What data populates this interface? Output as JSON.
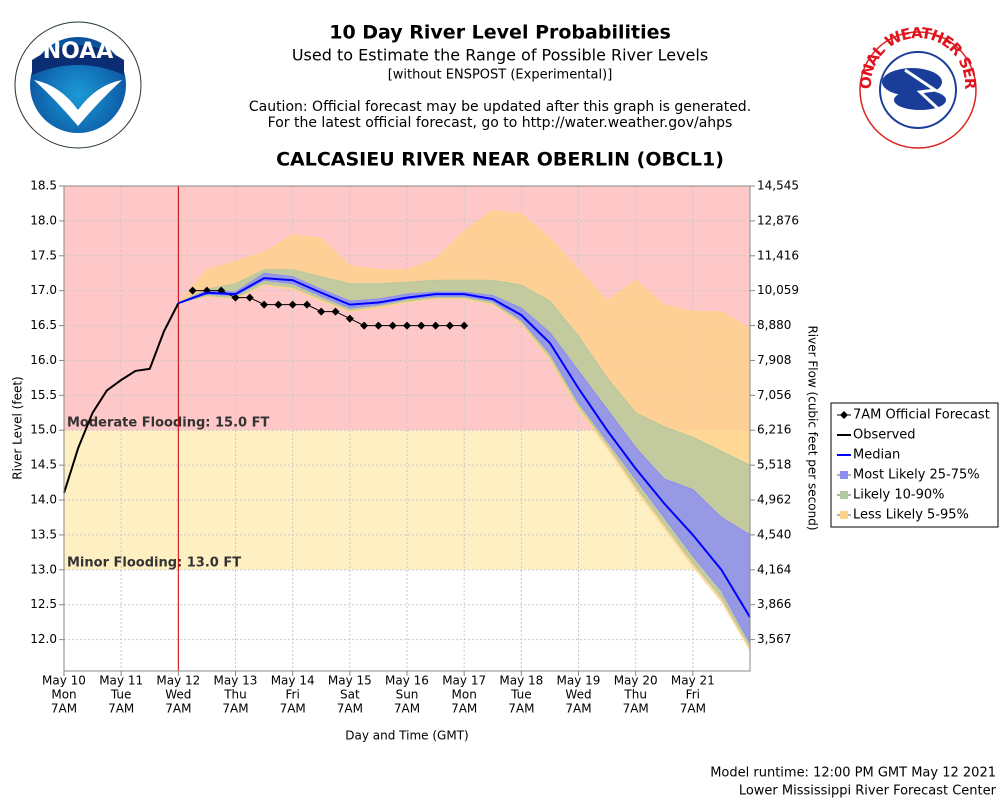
{
  "header": {
    "title": "10 Day River Level Probabilities",
    "subtitle": "Used to Estimate the Range of Possible River Levels",
    "note": "[without ENSPOST (Experimental)]",
    "caution": [
      "Caution: Official forecast may be updated after this graph is generated.",
      "For the latest official forecast, go to http://water.weather.gov/ahps"
    ]
  },
  "logos": {
    "left": "NOAA",
    "right": "NATIONAL WEATHER SERVICE"
  },
  "chart_data": {
    "type": "band-line",
    "title": "CALCASIEU RIVER NEAR OBERLIN (OBCL1)",
    "xlabel": "Day and Time (GMT)",
    "ylabel": "River Level (feet)",
    "y2label": "River Flow (cubic feet per second)",
    "xlim": [
      0,
      12
    ],
    "ylim": [
      11.55,
      18.5
    ],
    "grid": true,
    "legend": "right",
    "xticks": [
      {
        "value": 0,
        "label": [
          "May 10",
          "Mon",
          "7AM"
        ]
      },
      {
        "value": 1,
        "label": [
          "May 11",
          "Tue",
          "7AM"
        ]
      },
      {
        "value": 2,
        "label": [
          "May 12",
          "Wed",
          "7AM"
        ]
      },
      {
        "value": 3,
        "label": [
          "May 13",
          "Thu",
          "7AM"
        ]
      },
      {
        "value": 4,
        "label": [
          "May 14",
          "Fri",
          "7AM"
        ]
      },
      {
        "value": 5,
        "label": [
          "May 15",
          "Sat",
          "7AM"
        ]
      },
      {
        "value": 6,
        "label": [
          "May 16",
          "Sun",
          "7AM"
        ]
      },
      {
        "value": 7,
        "label": [
          "May 17",
          "Mon",
          "7AM"
        ]
      },
      {
        "value": 8,
        "label": [
          "May 18",
          "Tue",
          "7AM"
        ]
      },
      {
        "value": 9,
        "label": [
          "May 19",
          "Wed",
          "7AM"
        ]
      },
      {
        "value": 10,
        "label": [
          "May 20",
          "Thu",
          "7AM"
        ]
      },
      {
        "value": 11,
        "label": [
          "May 21",
          "Fri",
          "7AM"
        ]
      }
    ],
    "yticks": [
      18.5,
      {
        "value": 18,
        "label": "18.0"
      },
      17.5,
      {
        "value": 17,
        "label": "17.0"
      },
      16.5,
      {
        "value": 16,
        "label": "16.0"
      },
      15.5,
      {
        "value": 15,
        "label": "15.0"
      },
      14.5,
      {
        "value": 14,
        "label": "14.0"
      },
      13.5,
      {
        "value": 13,
        "label": "13.0"
      },
      12.5,
      {
        "value": 12,
        "label": "12.0"
      }
    ],
    "y2ticks": [
      {
        "value": 14545,
        "label": "14,545",
        "stage": 18.5
      },
      {
        "value": 12876,
        "label": "12,876",
        "stage": 18
      },
      {
        "value": 11416,
        "label": "11,416",
        "stage": 17.5
      },
      {
        "value": 10059,
        "label": "10,059",
        "stage": 17
      },
      {
        "value": 8880,
        "label": "8,880",
        "stage": 16.5
      },
      {
        "value": 7908,
        "label": "7,908",
        "stage": 16
      },
      {
        "value": 7056,
        "label": "7,056",
        "stage": 15.5
      },
      {
        "value": 6216,
        "label": "6,216",
        "stage": 15
      },
      {
        "value": 5518,
        "label": "5,518",
        "stage": 14.5
      },
      {
        "value": 4962,
        "label": "4,962",
        "stage": 14
      },
      {
        "value": 4540,
        "label": "4,540",
        "stage": 13.5
      },
      {
        "value": 4164,
        "label": "4,164",
        "stage": 13
      },
      {
        "value": 3866,
        "label": "3,866",
        "stage": 12.5
      },
      {
        "value": 3567,
        "label": "3,567",
        "stage": 12
      }
    ],
    "thresholds": [
      {
        "label": "Moderate Flooding: 15.0 FT",
        "value": 15,
        "color": "#ffc8c8"
      },
      {
        "label": "Minor Flooding: 13.0 FT",
        "value": 13,
        "color": "#fff0c4"
      }
    ],
    "now_x": 2,
    "now_color": "#cc0000",
    "series": [
      {
        "name": "7AM Official Forecast",
        "color": "#000000",
        "marker": "diamond",
        "x": [
          2.25,
          2.5,
          2.75,
          3,
          3.25,
          3.5,
          3.75,
          4,
          4.25,
          4.5,
          4.75,
          5,
          5.25,
          5.5,
          5.75,
          6,
          6.25,
          6.5,
          6.75,
          7
        ],
        "values": [
          17,
          17,
          17,
          16.9,
          16.9,
          16.8,
          16.8,
          16.8,
          16.8,
          16.7,
          16.7,
          16.6,
          16.5,
          16.5,
          16.5,
          16.5,
          16.5,
          16.5,
          16.5,
          16.5
        ]
      },
      {
        "name": "Observed",
        "color": "#000000",
        "x": [
          0,
          0.25,
          0.5,
          0.75,
          1,
          1.25,
          1.5,
          1.75,
          2
        ],
        "values": [
          14.1,
          14.75,
          15.25,
          15.57,
          15.72,
          15.85,
          15.88,
          16.42,
          16.82
        ]
      },
      {
        "name": "Median",
        "color": "#0000ff",
        "x": [
          2,
          2.5,
          3,
          3.5,
          4,
          4.5,
          5,
          5.5,
          6,
          6.5,
          7,
          7.5,
          8,
          8.5,
          9,
          9.5,
          10,
          10.5,
          11,
          11.5,
          12
        ],
        "values": [
          16.82,
          16.97,
          16.95,
          17.18,
          17.15,
          16.97,
          16.8,
          16.83,
          16.9,
          16.95,
          16.95,
          16.88,
          16.65,
          16.25,
          15.6,
          15,
          14.45,
          13.95,
          13.5,
          13,
          12.32
        ]
      }
    ],
    "band_x": [
      2,
      2.5,
      3,
      3.5,
      4,
      4.5,
      5,
      5.5,
      6,
      6.5,
      7,
      7.5,
      8,
      8.5,
      9,
      9.5,
      10,
      10.5,
      11,
      11.5,
      12
    ],
    "bands": [
      {
        "name": "Most Likely 25-75%",
        "color": "#8c8cf5",
        "lower": [
          16.82,
          16.95,
          16.93,
          17.15,
          17.1,
          16.92,
          16.75,
          16.8,
          16.88,
          16.92,
          16.92,
          16.85,
          16.58,
          16.1,
          15.4,
          14.85,
          14.3,
          13.75,
          13.2,
          12.7,
          11.95
        ],
        "upper": [
          16.82,
          17,
          16.98,
          17.25,
          17.2,
          17.02,
          16.85,
          16.88,
          16.95,
          16.98,
          16.98,
          16.93,
          16.75,
          16.4,
          15.85,
          15.3,
          14.75,
          14.3,
          14.15,
          13.75,
          13.5
        ]
      },
      {
        "name": "Likely 10-90%",
        "color": "#b4c8a0",
        "lower": [
          16.82,
          16.93,
          16.9,
          17.1,
          17.05,
          16.88,
          16.72,
          16.78,
          16.85,
          16.9,
          16.9,
          16.82,
          16.55,
          16.05,
          15.35,
          14.8,
          14.2,
          13.65,
          13.1,
          12.6,
          11.9
        ],
        "upper": [
          16.82,
          17.02,
          17.1,
          17.3,
          17.3,
          17.2,
          17.1,
          17.1,
          17.12,
          17.15,
          17.15,
          17.15,
          17.08,
          16.85,
          16.35,
          15.75,
          15.25,
          15.05,
          14.9,
          14.7,
          14.5
        ]
      },
      {
        "name": "Less Likely 5-95%",
        "color": "#ffd28a",
        "lower": [
          16.82,
          16.92,
          16.88,
          17.08,
          17.02,
          16.85,
          16.7,
          16.75,
          16.83,
          16.88,
          16.88,
          16.8,
          16.52,
          16,
          15.3,
          14.75,
          14.15,
          13.6,
          13.05,
          12.55,
          11.85
        ],
        "upper": [
          16.82,
          17.3,
          17.42,
          17.55,
          17.8,
          17.75,
          17.35,
          17.3,
          17.3,
          17.45,
          17.85,
          18.15,
          18.1,
          17.75,
          17.3,
          16.85,
          17.15,
          16.8,
          16.7,
          16.7,
          16.45
        ]
      }
    ]
  },
  "footer": [
    "Model runtime: 12:00 PM GMT May 12 2021",
    "Lower Mississippi River Forecast Center"
  ]
}
